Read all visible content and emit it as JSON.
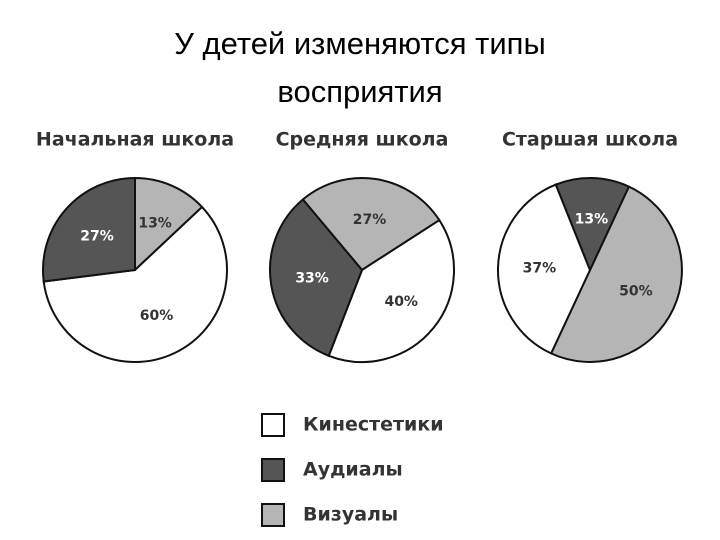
{
  "title": "У детей изменяются типы восприятия",
  "legend": [
    {
      "name": "Кинестетики",
      "color": "#ffffff"
    },
    {
      "name": "Аудиалы",
      "color": "#555555"
    },
    {
      "name": "Визуалы",
      "color": "#b5b5b5"
    }
  ],
  "chart_data": [
    {
      "type": "pie",
      "title": "Начальная школа",
      "values": [
        60,
        27,
        13
      ],
      "value_labels": [
        "60%",
        "27%",
        "13%"
      ]
    },
    {
      "type": "pie",
      "title": "Средняя школа",
      "values": [
        40,
        33,
        27
      ],
      "value_labels": [
        "40%",
        "33%",
        "27%"
      ]
    },
    {
      "type": "pie",
      "title": "Старшая школа",
      "values": [
        37,
        13,
        50
      ],
      "value_labels": [
        "37%",
        "13%",
        "50%"
      ]
    }
  ]
}
